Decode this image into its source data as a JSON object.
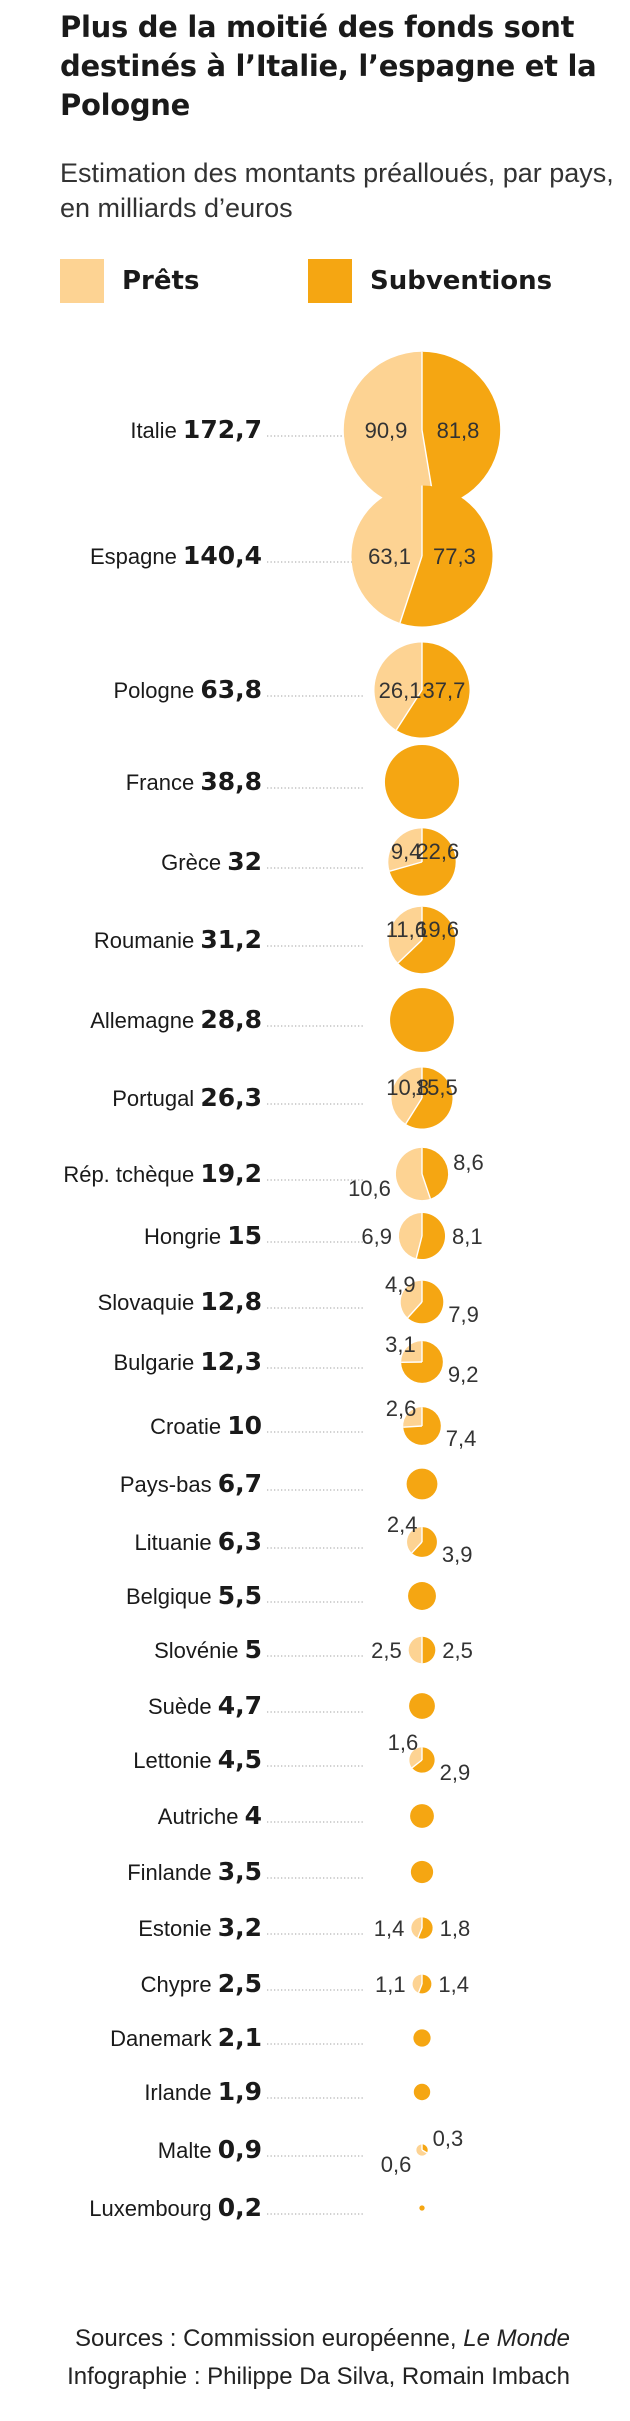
{
  "title": "Plus de la moitié des fonds sont destinés à l’Italie, l’espagne et la Pologne",
  "subtitle": "Estimation des montants préalloués, par pays, en milliards d’euros",
  "sources": {
    "prefix": "Sources : Commission européenne, ",
    "publication": "Le Monde",
    "credits": "Infographie : Philippe Da Silva, Romain Imbach"
  },
  "colors": {
    "prets": "#FDD393",
    "subventions": "#F5A612",
    "dots": "#b3b3b3",
    "text": "#1a1a1a"
  },
  "chart_data": {
    "type": "pie",
    "title": "Plus de la moitié des fonds sont destinés à l’Italie, l’espagne et la Pologne",
    "subtitle": "Estimation des montants préalloués, par pays, en milliards d’euros",
    "legend": {
      "position": "top",
      "entries": [
        {
          "name": "Prêts",
          "color": "#FDD393"
        },
        {
          "name": "Subventions",
          "color": "#F5A612"
        }
      ]
    },
    "series": [
      {
        "name": "Prêts"
      },
      {
        "name": "Subventions"
      }
    ],
    "countries": [
      {
        "name": "Italie",
        "total": "172,7",
        "prets": "90,9",
        "subventions": "81,8"
      },
      {
        "name": "Espagne",
        "total": "140,4",
        "prets": "63,1",
        "subventions": "77,3"
      },
      {
        "name": "Pologne",
        "total": "63,8",
        "prets": "26,1",
        "subventions": "37,7"
      },
      {
        "name": "France",
        "total": "38,8",
        "prets": "",
        "subventions": ""
      },
      {
        "name": "Grèce",
        "total": "32",
        "prets": "9,4",
        "subventions": "22,6"
      },
      {
        "name": "Roumanie",
        "total": "31,2",
        "prets": "11,6",
        "subventions": "19,6"
      },
      {
        "name": "Allemagne",
        "total": "28,8",
        "prets": "",
        "subventions": ""
      },
      {
        "name": "Portugal",
        "total": "26,3",
        "prets": "10,8",
        "subventions": "15,5"
      },
      {
        "name": "Rép. tchèque",
        "total": "19,2",
        "prets": "10,6",
        "subventions": "8,6"
      },
      {
        "name": "Hongrie",
        "total": "15",
        "prets": "6,9",
        "subventions": "8,1"
      },
      {
        "name": "Slovaquie",
        "total": "12,8",
        "prets": "4,9",
        "subventions": "7,9"
      },
      {
        "name": "Bulgarie",
        "total": "12,3",
        "prets": "3,1",
        "subventions": "9,2"
      },
      {
        "name": "Croatie",
        "total": "10",
        "prets": "2,6",
        "subventions": "7,4"
      },
      {
        "name": "Pays-bas",
        "total": "6,7",
        "prets": "",
        "subventions": ""
      },
      {
        "name": "Lituanie",
        "total": "6,3",
        "prets": "2,4",
        "subventions": "3,9"
      },
      {
        "name": "Belgique",
        "total": "5,5",
        "prets": "",
        "subventions": ""
      },
      {
        "name": "Slovénie",
        "total": "5",
        "prets": "2,5",
        "subventions": "2,5"
      },
      {
        "name": "Suède",
        "total": "4,7",
        "prets": "",
        "subventions": ""
      },
      {
        "name": "Lettonie",
        "total": "4,5",
        "prets": "1,6",
        "subventions": "2,9"
      },
      {
        "name": "Autriche",
        "total": "4",
        "prets": "",
        "subventions": ""
      },
      {
        "name": "Finlande",
        "total": "3,5",
        "prets": "",
        "subventions": ""
      },
      {
        "name": "Estonie",
        "total": "3,2",
        "prets": "1,4",
        "subventions": "1,8"
      },
      {
        "name": "Chypre",
        "total": "2,5",
        "prets": "1,1",
        "subventions": "1,4"
      },
      {
        "name": "Danemark",
        "total": "2,1",
        "prets": "",
        "subventions": ""
      },
      {
        "name": "Irlande",
        "total": "1,9",
        "prets": "",
        "subventions": ""
      },
      {
        "name": "Malte",
        "total": "0,9",
        "prets": "0,6",
        "subventions": "0,3"
      },
      {
        "name": "Luxembourg",
        "total": "0,2",
        "prets": "",
        "subventions": ""
      }
    ]
  }
}
